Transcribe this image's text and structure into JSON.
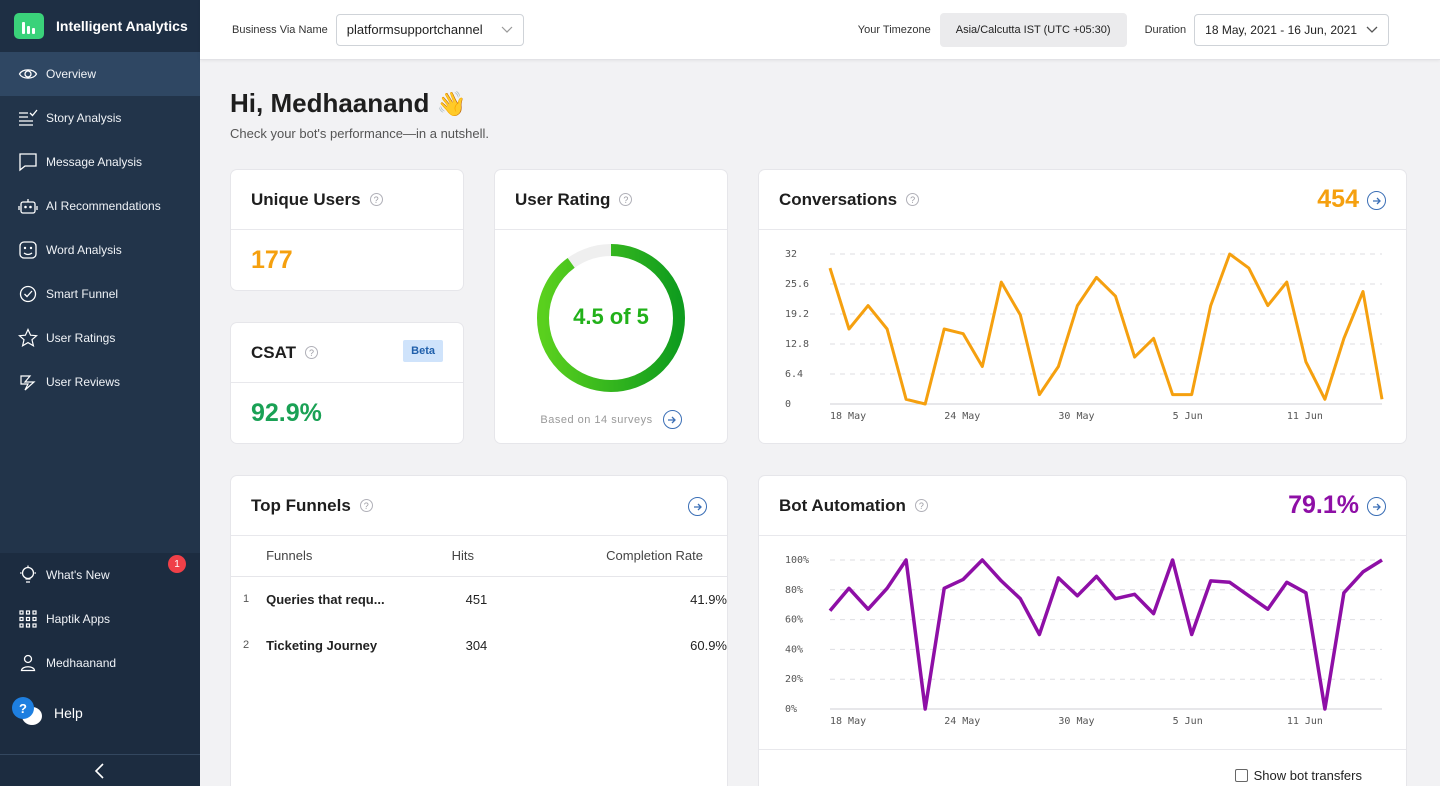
{
  "brand": {
    "title": "Intelligent Analytics"
  },
  "sidebar": {
    "items": [
      {
        "label": "Overview",
        "icon": "eye-icon",
        "active": true
      },
      {
        "label": "Story Analysis",
        "icon": "story-list-icon"
      },
      {
        "label": "Message Analysis",
        "icon": "message-icon"
      },
      {
        "label": "AI Recommendations",
        "icon": "robot-icon"
      },
      {
        "label": "Word Analysis",
        "icon": "face-icon"
      },
      {
        "label": "Smart Funnel",
        "icon": "funnel-check-icon"
      },
      {
        "label": "User Ratings",
        "icon": "star-icon"
      },
      {
        "label": "User Reviews",
        "icon": "review-icon"
      }
    ],
    "bottom": {
      "whats_new": "What's New",
      "whats_new_badge": "1",
      "apps": "Haptik Apps",
      "user": "Medhaanand",
      "help": "Help"
    }
  },
  "topbar": {
    "business_label": "Business Via Name",
    "business_value": "platformsupportchannel",
    "timezone_label": "Your Timezone",
    "timezone_value": "Asia/Calcutta IST (UTC +05:30)",
    "duration_label": "Duration",
    "duration_value": "18 May, 2021 - 16 Jun, 2021"
  },
  "greeting": {
    "title": "Hi, Medhaanand",
    "emoji": "👋",
    "subtitle": "Check your bot's performance—in a nutshell."
  },
  "cards": {
    "unique_users": {
      "title": "Unique Users",
      "value": "177",
      "color": "#f5a00f"
    },
    "csat": {
      "title": "CSAT",
      "badge": "Beta",
      "value": "92.9%",
      "color": "#1aa155"
    },
    "user_rating": {
      "title": "User Rating",
      "value": "4.5 of 5",
      "rating": 4.5,
      "max": 5,
      "footer": "Based on 14 surveys",
      "color": "#22b11a"
    },
    "conversations": {
      "title": "Conversations",
      "value": "454",
      "color": "#f5a00f"
    },
    "top_funnels": {
      "title": "Top Funnels",
      "columns": [
        "Funnels",
        "Hits",
        "Completion Rate"
      ],
      "rows": [
        {
          "rank": "1",
          "name": "Queries that requ...",
          "hits": "451",
          "rate": "41.9%"
        },
        {
          "rank": "2",
          "name": "Ticketing Journey",
          "hits": "304",
          "rate": "60.9%"
        }
      ]
    },
    "bot_automation": {
      "title": "Bot Automation",
      "value": "79.1%",
      "color": "#8e0fa6",
      "show_transfers": "Show bot transfers"
    }
  },
  "chart_data": [
    {
      "type": "line",
      "title": "Conversations",
      "x_ticks": [
        "18 May",
        "24 May",
        "30 May",
        "5 Jun",
        "11 Jun"
      ],
      "y_ticks": [
        "0",
        "6.4",
        "12.8",
        "19.2",
        "25.6",
        "32"
      ],
      "ylim": [
        0,
        32
      ],
      "grid": true,
      "color": "#f5a00f",
      "series": [
        {
          "values": [
            29,
            16,
            21,
            16,
            1,
            0,
            16,
            15,
            8,
            26,
            19,
            2,
            8,
            21,
            27,
            23,
            10,
            14,
            2,
            2,
            21,
            32,
            29,
            21,
            26,
            9,
            1,
            14,
            24,
            1
          ]
        }
      ]
    },
    {
      "type": "line",
      "title": "Bot Automation",
      "x_ticks": [
        "18 May",
        "24 May",
        "30 May",
        "5 Jun",
        "11 Jun"
      ],
      "y_ticks": [
        "0%",
        "20%",
        "40%",
        "60%",
        "80%",
        "100%"
      ],
      "ylim": [
        0,
        100
      ],
      "grid": true,
      "color": "#8e0fa6",
      "series": [
        {
          "values": [
            66,
            81,
            67,
            81,
            100,
            0,
            81,
            87,
            100,
            86,
            74,
            50,
            88,
            76,
            89,
            74,
            77,
            64,
            100,
            50,
            86,
            85,
            76,
            67,
            85,
            78,
            0,
            78,
            92,
            100
          ]
        }
      ]
    }
  ]
}
